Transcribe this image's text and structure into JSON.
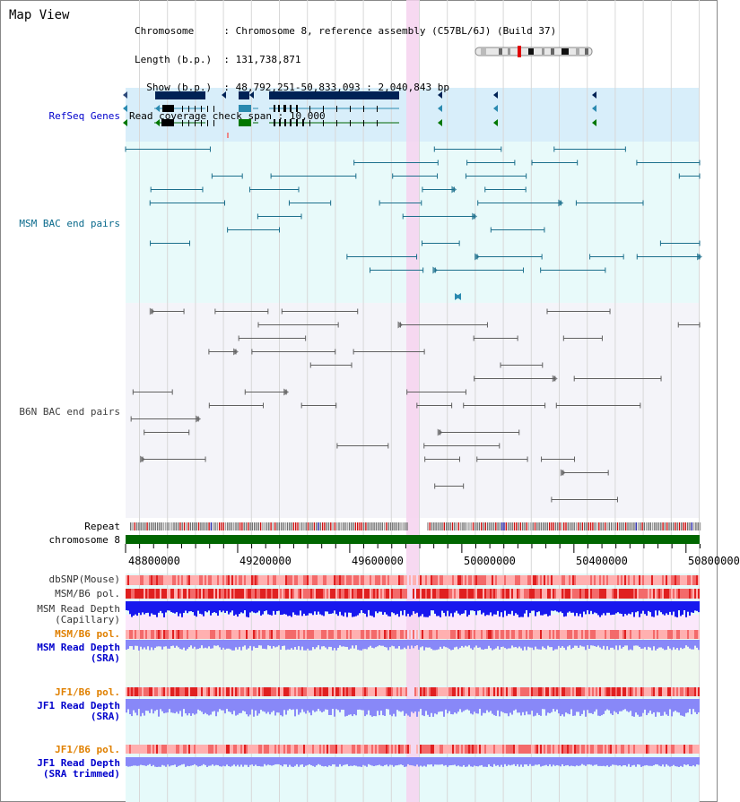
{
  "header": {
    "title": "Map View",
    "chromosome_key": "Chromosome    ",
    "chromosome_value": "Chromosome 8, reference assembly (C57BL/6J) (Build 37)",
    "length_key": "Length (b.p.) ",
    "length_value": "131,738,871",
    "show_key": "Show (b.p.) ",
    "show_value": "48,792,251-50,833,093 : 2,040,843 bp",
    "coverage_key": "Read coverage check span ",
    "coverage_value": "10,000"
  },
  "tracks": {
    "refseq": "RefSeq Genes",
    "msm_bac": "MSM BAC end pairs",
    "b6n_bac": "B6N BAC end pairs",
    "repeat": "Repeat",
    "chromosome": "chromosome 8",
    "dbsnp": "dbSNP(Mouse)",
    "msm_b6_pol": "MSM/B6 pol.",
    "msm_depth_cap_1": "MSM Read Depth",
    "msm_depth_cap_2": "(Capillary)",
    "msm_b6_pol_sra": "MSM/B6 pol.",
    "msm_depth_sra_1": "MSM Read Depth",
    "msm_depth_sra_2": "(SRA)",
    "jf1_b6_pol_1": "JF1/B6 pol.",
    "jf1_depth_sra_1": "JF1 Read Depth",
    "jf1_depth_sra_2": "(SRA)",
    "jf1_b6_pol_2": "JF1/B6 pol.",
    "jf1_depth_trim_1": "JF1 Read Depth",
    "jf1_depth_trim_2": "(SRA trimmed)"
  },
  "axis": {
    "ticks": [
      "48800000",
      "49200000",
      "49600000",
      "50000000",
      "50400000",
      "50800000"
    ]
  },
  "colors": {
    "refseq_bg": "#d8eefa",
    "gene": "#002255",
    "msm_bac": "#1c6f8c",
    "b6n_bac": "#606060",
    "highlight": "#f6d2ee",
    "chromosome_bar": "#006600",
    "depth_blue": "#1818ee",
    "depth_light": "#8888f8",
    "pol_red": "#ee4444"
  }
}
